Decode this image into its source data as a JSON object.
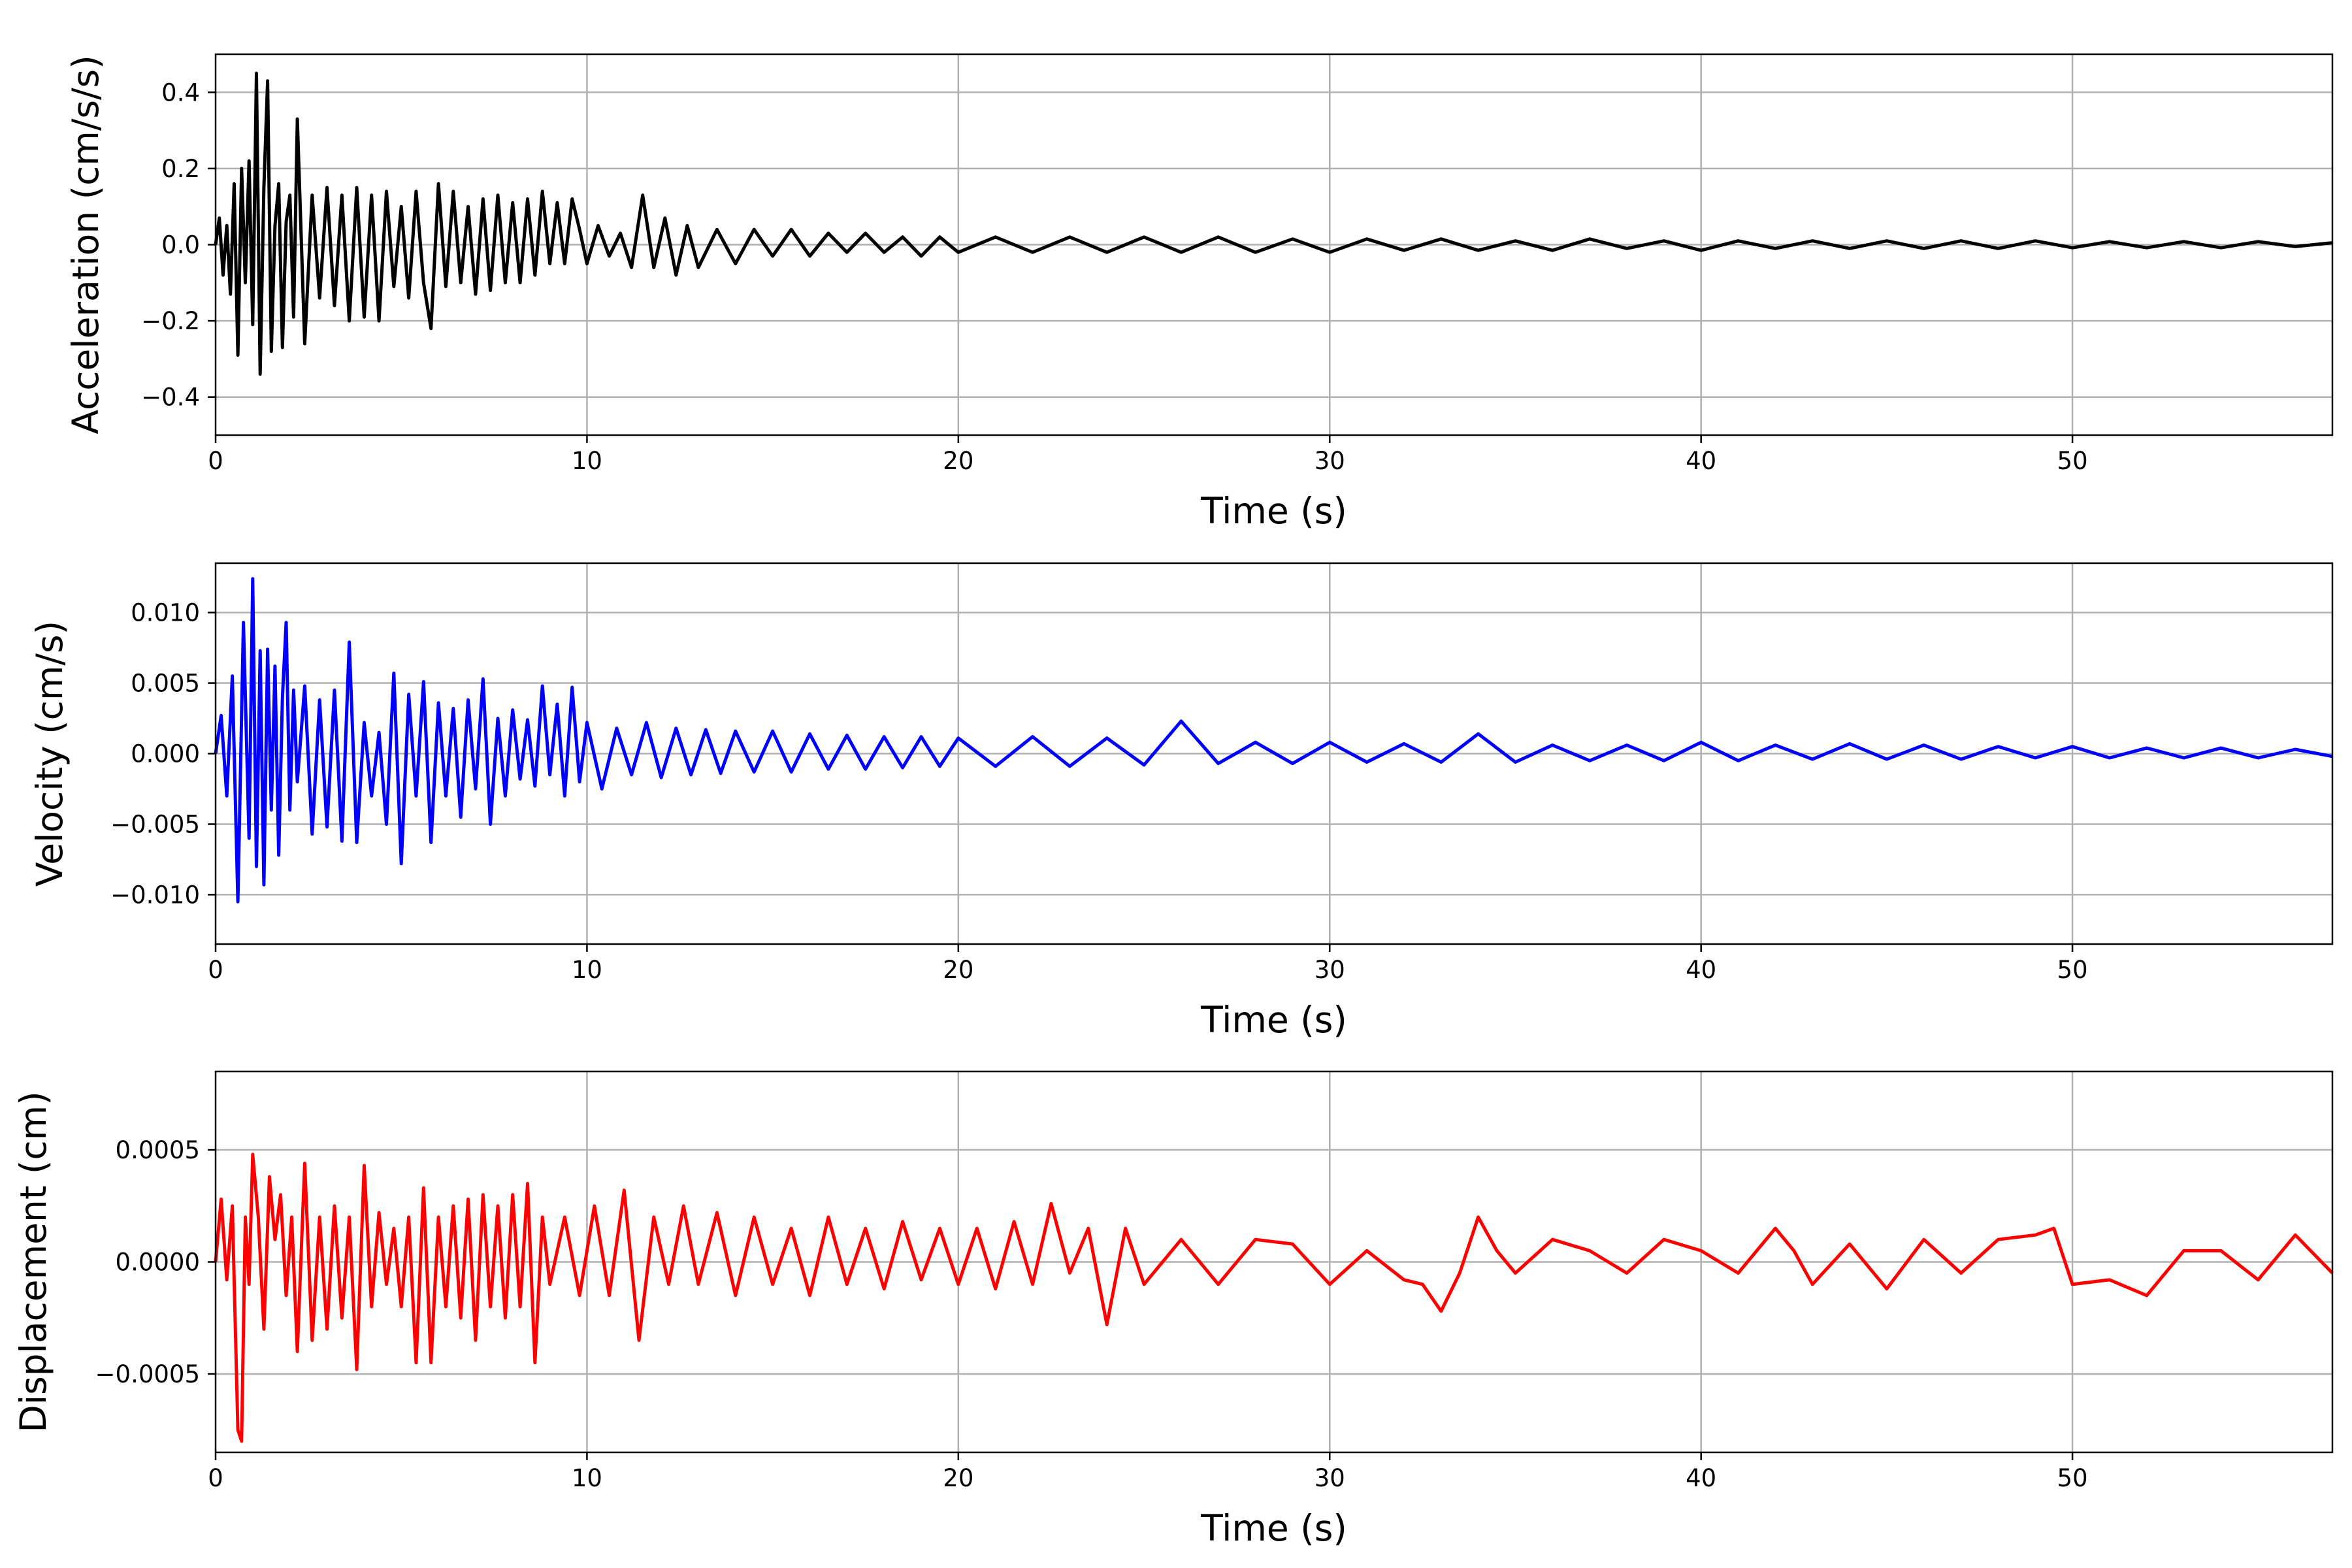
{
  "figure": {
    "charts": [
      {
        "id": "acceleration",
        "type": "line",
        "ylabel": "Acceleration (cm/s/s)",
        "xlabel": "Time (s)",
        "xlim": [
          0,
          57
        ],
        "ylim": [
          -0.5,
          0.5
        ],
        "xticks": [
          0,
          10,
          20,
          30,
          40,
          50
        ],
        "xtick_labels": [
          "0",
          "10",
          "20",
          "30",
          "40",
          "50"
        ],
        "yticks": [
          -0.4,
          -0.2,
          0.0,
          0.2,
          0.4
        ],
        "ytick_labels": [
          "−0.4",
          "−0.2",
          "0.0",
          "0.2",
          "0.4"
        ],
        "grid": true,
        "color": "#000000"
      },
      {
        "id": "velocity",
        "type": "line",
        "ylabel": "Velocity (cm/s)",
        "xlabel": "Time (s)",
        "xlim": [
          0,
          57
        ],
        "ylim": [
          -0.0135,
          0.0135
        ],
        "xticks": [
          0,
          10,
          20,
          30,
          40,
          50
        ],
        "xtick_labels": [
          "0",
          "10",
          "20",
          "30",
          "40",
          "50"
        ],
        "yticks": [
          -0.01,
          -0.005,
          0.0,
          0.005,
          0.01
        ],
        "ytick_labels": [
          "−0.010",
          "−0.005",
          "0.000",
          "0.005",
          "0.010"
        ],
        "grid": true,
        "color": "#0000ff"
      },
      {
        "id": "displacement",
        "type": "line",
        "ylabel": "Displacement (cm)",
        "xlabel": "Time (s)",
        "xlim": [
          0,
          57
        ],
        "ylim": [
          -0.00085,
          0.00085
        ],
        "xticks": [
          0,
          10,
          20,
          30,
          40,
          50
        ],
        "xtick_labels": [
          "0",
          "10",
          "20",
          "30",
          "40",
          "50"
        ],
        "yticks": [
          -0.0005,
          0.0,
          0.0005
        ],
        "ytick_labels": [
          "−0.0005",
          "0.0000",
          "0.0005"
        ],
        "grid": true,
        "color": "#ff0000"
      }
    ]
  },
  "chart_data": [
    {
      "type": "line",
      "ylabel": "Acceleration (cm/s/s)",
      "xlabel": "Time (s)",
      "xlim": [
        0,
        57
      ],
      "ylim": [
        -0.5,
        0.5
      ],
      "grid": true,
      "color": "#000000",
      "series": [
        {
          "x": [
            0,
            0.1,
            0.2,
            0.3,
            0.4,
            0.5,
            0.6,
            0.7,
            0.8,
            0.9,
            1.0,
            1.1,
            1.2,
            1.3,
            1.4,
            1.5,
            1.6,
            1.7,
            1.8,
            1.9,
            2.0,
            2.1,
            2.2,
            2.4,
            2.6,
            2.8,
            3.0,
            3.2,
            3.4,
            3.6,
            3.8,
            4.0,
            4.2,
            4.4,
            4.6,
            4.8,
            5.0,
            5.2,
            5.4,
            5.6,
            5.8,
            6.0,
            6.2,
            6.4,
            6.6,
            6.8,
            7.0,
            7.2,
            7.4,
            7.6,
            7.8,
            8.0,
            8.2,
            8.4,
            8.6,
            8.8,
            9.0,
            9.2,
            9.4,
            9.6,
            9.8,
            10.0,
            10.3,
            10.6,
            10.9,
            11.2,
            11.5,
            11.8,
            12.1,
            12.4,
            12.7,
            13.0,
            13.5,
            14.0,
            14.5,
            15.0,
            15.5,
            16.0,
            16.5,
            17.0,
            17.5,
            18.0,
            18.5,
            19.0,
            19.5,
            20.0,
            21.0,
            22.0,
            23.0,
            24.0,
            25.0,
            26.0,
            27.0,
            28.0,
            29.0,
            30.0,
            31.0,
            32.0,
            33.0,
            34.0,
            35.0,
            36.0,
            37.0,
            38.0,
            39.0,
            40.0,
            41.0,
            42.0,
            43.0,
            44.0,
            45.0,
            46.0,
            47.0,
            48.0,
            49.0,
            50.0,
            51.0,
            52.0,
            53.0,
            54.0,
            55.0,
            56.0,
            57.0
          ],
          "y": [
            0.0,
            0.07,
            -0.08,
            0.05,
            -0.13,
            0.16,
            -0.29,
            0.2,
            -0.1,
            0.22,
            -0.21,
            0.45,
            -0.34,
            0.15,
            0.43,
            -0.28,
            0.05,
            0.16,
            -0.27,
            0.06,
            0.13,
            -0.19,
            0.33,
            -0.26,
            0.13,
            -0.14,
            0.15,
            -0.16,
            0.13,
            -0.2,
            0.15,
            -0.19,
            0.13,
            -0.2,
            0.14,
            -0.11,
            0.1,
            -0.14,
            0.14,
            -0.1,
            -0.22,
            0.16,
            -0.11,
            0.14,
            -0.1,
            0.1,
            -0.13,
            0.12,
            -0.12,
            0.13,
            -0.1,
            0.11,
            -0.1,
            0.12,
            -0.08,
            0.14,
            -0.05,
            0.11,
            -0.05,
            0.12,
            0.04,
            -0.05,
            0.05,
            -0.03,
            0.03,
            -0.06,
            0.13,
            -0.06,
            0.07,
            -0.08,
            0.05,
            -0.06,
            0.04,
            -0.05,
            0.04,
            -0.03,
            0.04,
            -0.03,
            0.03,
            -0.02,
            0.03,
            -0.02,
            0.02,
            -0.03,
            0.02,
            -0.02,
            0.02,
            -0.02,
            0.02,
            -0.02,
            0.02,
            -0.02,
            0.02,
            -0.02,
            0.015,
            -0.02,
            0.015,
            -0.015,
            0.015,
            -0.015,
            0.01,
            -0.015,
            0.015,
            -0.01,
            0.01,
            -0.015,
            0.01,
            -0.01,
            0.01,
            -0.01,
            0.01,
            -0.01,
            0.01,
            -0.01,
            0.01,
            -0.008,
            0.008,
            -0.008,
            0.008,
            -0.008,
            0.008,
            -0.005,
            0.005
          ]
        }
      ]
    },
    {
      "type": "line",
      "ylabel": "Velocity (cm/s)",
      "xlabel": "Time (s)",
      "xlim": [
        0,
        57
      ],
      "ylim": [
        -0.0135,
        0.0135
      ],
      "grid": true,
      "color": "#0000ff",
      "series": [
        {
          "x": [
            0,
            0.15,
            0.3,
            0.45,
            0.6,
            0.75,
            0.9,
            1.0,
            1.1,
            1.2,
            1.3,
            1.4,
            1.5,
            1.6,
            1.7,
            1.8,
            1.9,
            2.0,
            2.1,
            2.2,
            2.4,
            2.6,
            2.8,
            3.0,
            3.2,
            3.4,
            3.6,
            3.8,
            4.0,
            4.2,
            4.4,
            4.6,
            4.8,
            5.0,
            5.2,
            5.4,
            5.6,
            5.8,
            6.0,
            6.2,
            6.4,
            6.6,
            6.8,
            7.0,
            7.2,
            7.4,
            7.6,
            7.8,
            8.0,
            8.2,
            8.4,
            8.6,
            8.8,
            9.0,
            9.2,
            9.4,
            9.6,
            9.8,
            10.0,
            10.4,
            10.8,
            11.2,
            11.6,
            12.0,
            12.4,
            12.8,
            13.2,
            13.6,
            14.0,
            14.5,
            15.0,
            15.5,
            16.0,
            16.5,
            17.0,
            17.5,
            18.0,
            18.5,
            19.0,
            19.5,
            20.0,
            21.0,
            22.0,
            23.0,
            24.0,
            25.0,
            26.0,
            27.0,
            28.0,
            29.0,
            30.0,
            31.0,
            32.0,
            33.0,
            34.0,
            35.0,
            36.0,
            37.0,
            38.0,
            39.0,
            40.0,
            41.0,
            42.0,
            43.0,
            44.0,
            45.0,
            46.0,
            47.0,
            48.0,
            49.0,
            50.0,
            51.0,
            52.0,
            53.0,
            54.0,
            55.0,
            56.0,
            57.0
          ],
          "y": [
            0.0,
            0.0027,
            -0.003,
            0.0055,
            -0.0105,
            0.0093,
            -0.006,
            0.0124,
            -0.008,
            0.0073,
            -0.0093,
            0.0074,
            -0.004,
            0.0062,
            -0.0072,
            0.004,
            0.0093,
            -0.004,
            0.0045,
            -0.002,
            0.0048,
            -0.0057,
            0.0038,
            -0.0052,
            0.0045,
            -0.0062,
            0.0079,
            -0.0063,
            0.0022,
            -0.003,
            0.0015,
            -0.005,
            0.0057,
            -0.0078,
            0.0042,
            -0.003,
            0.0051,
            -0.0063,
            0.0036,
            -0.003,
            0.0032,
            -0.0045,
            0.0038,
            -0.0025,
            0.0053,
            -0.005,
            0.0025,
            -0.003,
            0.0031,
            -0.0018,
            0.0024,
            -0.0023,
            0.0048,
            -0.0015,
            0.0035,
            -0.003,
            0.0047,
            -0.002,
            0.0022,
            -0.0025,
            0.0018,
            -0.0015,
            0.0022,
            -0.0017,
            0.0018,
            -0.0015,
            0.0017,
            -0.0014,
            0.0016,
            -0.0013,
            0.0016,
            -0.0013,
            0.0014,
            -0.0011,
            0.0013,
            -0.0011,
            0.0012,
            -0.001,
            0.0012,
            -0.0009,
            0.0011,
            -0.0009,
            0.0012,
            -0.0009,
            0.0011,
            -0.0008,
            0.0023,
            -0.0007,
            0.0008,
            -0.0007,
            0.0008,
            -0.0006,
            0.0007,
            -0.0006,
            0.0014,
            -0.0006,
            0.0006,
            -0.0005,
            0.0006,
            -0.0005,
            0.0008,
            -0.0005,
            0.0006,
            -0.0004,
            0.0007,
            -0.0004,
            0.0006,
            -0.0004,
            0.0005,
            -0.0003,
            0.0005,
            -0.0003,
            0.0004,
            -0.0003,
            0.0004,
            -0.0003,
            0.0003,
            -0.0002
          ]
        }
      ]
    },
    {
      "type": "line",
      "ylabel": "Displacement (cm)",
      "xlabel": "Time (s)",
      "xlim": [
        0,
        57
      ],
      "ylim": [
        -0.00085,
        0.00085
      ],
      "grid": true,
      "color": "#ff0000",
      "series": [
        {
          "x": [
            0,
            0.15,
            0.3,
            0.45,
            0.6,
            0.7,
            0.8,
            0.9,
            1.0,
            1.15,
            1.3,
            1.45,
            1.6,
            1.75,
            1.9,
            2.05,
            2.2,
            2.4,
            2.6,
            2.8,
            3.0,
            3.2,
            3.4,
            3.6,
            3.8,
            4.0,
            4.2,
            4.4,
            4.6,
            4.8,
            5.0,
            5.2,
            5.4,
            5.6,
            5.8,
            6.0,
            6.2,
            6.4,
            6.6,
            6.8,
            7.0,
            7.2,
            7.4,
            7.6,
            7.8,
            8.0,
            8.2,
            8.4,
            8.6,
            8.8,
            9.0,
            9.4,
            9.8,
            10.2,
            10.6,
            11.0,
            11.4,
            11.8,
            12.2,
            12.6,
            13.0,
            13.5,
            14.0,
            14.5,
            15.0,
            15.5,
            16.0,
            16.5,
            17.0,
            17.5,
            18.0,
            18.5,
            19.0,
            19.5,
            20.0,
            20.5,
            21.0,
            21.5,
            22.0,
            22.5,
            23.0,
            23.5,
            24.0,
            24.5,
            25.0,
            26.0,
            27.0,
            28.0,
            29.0,
            30.0,
            31.0,
            32.0,
            32.5,
            33.0,
            33.5,
            34.0,
            34.5,
            35.0,
            36.0,
            37.0,
            38.0,
            39.0,
            40.0,
            41.0,
            42.0,
            42.5,
            43.0,
            44.0,
            45.0,
            46.0,
            47.0,
            48.0,
            49.0,
            49.5,
            50.0,
            51.0,
            52.0,
            53.0,
            54.0,
            55.0,
            56.0,
            57.0
          ],
          "y": [
            0.0,
            0.00028,
            -8e-05,
            0.00025,
            -0.00075,
            -0.0008,
            0.0002,
            -0.0001,
            0.00048,
            0.0002,
            -0.0003,
            0.00038,
            0.0001,
            0.0003,
            -0.00015,
            0.0002,
            -0.0004,
            0.00044,
            -0.00035,
            0.0002,
            -0.0003,
            0.00025,
            -0.00025,
            0.0002,
            -0.00048,
            0.00043,
            -0.0002,
            0.00022,
            -0.0001,
            0.00015,
            -0.0002,
            0.0002,
            -0.00045,
            0.00033,
            -0.00045,
            0.0002,
            -0.0002,
            0.00025,
            -0.00025,
            0.00028,
            -0.00035,
            0.0003,
            -0.0002,
            0.00025,
            -0.00025,
            0.0003,
            -0.0002,
            0.00035,
            -0.00045,
            0.0002,
            -0.0001,
            0.0002,
            -0.00015,
            0.00025,
            -0.00015,
            0.00032,
            -0.00035,
            0.0002,
            -0.0001,
            0.00025,
            -0.0001,
            0.00022,
            -0.00015,
            0.0002,
            -0.0001,
            0.00015,
            -0.00015,
            0.0002,
            -0.0001,
            0.00015,
            -0.00012,
            0.00018,
            -8e-05,
            0.00015,
            -0.0001,
            0.00015,
            -0.00012,
            0.00018,
            -0.0001,
            0.00026,
            -5e-05,
            0.00015,
            -0.00028,
            0.00015,
            -0.0001,
            0.0001,
            -0.0001,
            0.0001,
            8e-05,
            -0.0001,
            5e-05,
            -8e-05,
            -0.0001,
            -0.00022,
            -5e-05,
            0.0002,
            5e-05,
            -5e-05,
            0.0001,
            5e-05,
            -5e-05,
            0.0001,
            5e-05,
            -5e-05,
            0.00015,
            5e-05,
            -0.0001,
            8e-05,
            -0.00012,
            0.0001,
            -5e-05,
            0.0001,
            0.00012,
            0.00015,
            -0.0001,
            -8e-05,
            -0.00015,
            5e-05,
            5e-05,
            -8e-05,
            0.00012,
            -5e-05
          ]
        }
      ]
    }
  ]
}
